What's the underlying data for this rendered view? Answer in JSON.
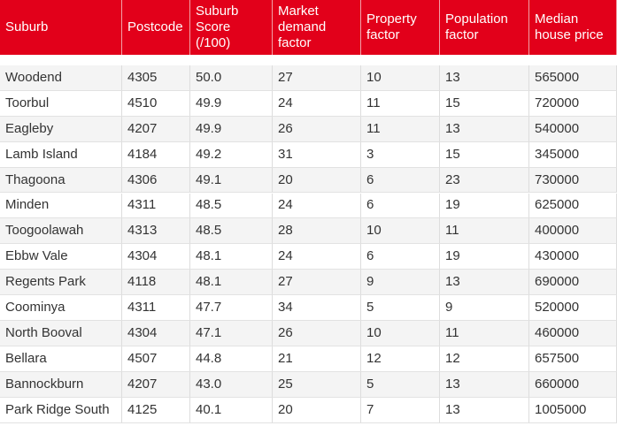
{
  "table": {
    "header": [
      "Suburb",
      "Postcode",
      "Suburb Score (/100)",
      "Market demand factor",
      "Property factor",
      "Population factor",
      "Median house price"
    ],
    "rows": [
      [
        "Woodend",
        "4305",
        "50.0",
        "27",
        "10",
        "13",
        "565000"
      ],
      [
        "Toorbul",
        "4510",
        "49.9",
        "24",
        "11",
        "15",
        "720000"
      ],
      [
        "Eagleby",
        "4207",
        "49.9",
        "26",
        "11",
        "13",
        "540000"
      ],
      [
        "Lamb Island",
        "4184",
        "49.2",
        "31",
        "3",
        "15",
        "345000"
      ],
      [
        "Thagoona",
        "4306",
        "49.1",
        "20",
        "6",
        "23",
        "730000"
      ],
      [
        "Minden",
        "4311",
        "48.5",
        "24",
        "6",
        "19",
        "625000"
      ],
      [
        "Toogoolawah",
        "4313",
        "48.5",
        "28",
        "10",
        "11",
        "400000"
      ],
      [
        "Ebbw Vale",
        "4304",
        "48.1",
        "24",
        "6",
        "19",
        "430000"
      ],
      [
        "Regents Park",
        "4118",
        "48.1",
        "27",
        "9",
        "13",
        "690000"
      ],
      [
        "Coominya",
        "4311",
        "47.7",
        "34",
        "5",
        "9",
        "520000"
      ],
      [
        "North Booval",
        "4304",
        "47.1",
        "26",
        "10",
        "11",
        "460000"
      ],
      [
        "Bellara",
        "4507",
        "44.8",
        "21",
        "12",
        "12",
        "657500"
      ],
      [
        "Bannockburn",
        "4207",
        "43.0",
        "25",
        "5",
        "13",
        "660000"
      ],
      [
        "Park Ridge South",
        "4125",
        "40.1",
        "20",
        "7",
        "13",
        "1005000"
      ]
    ]
  }
}
